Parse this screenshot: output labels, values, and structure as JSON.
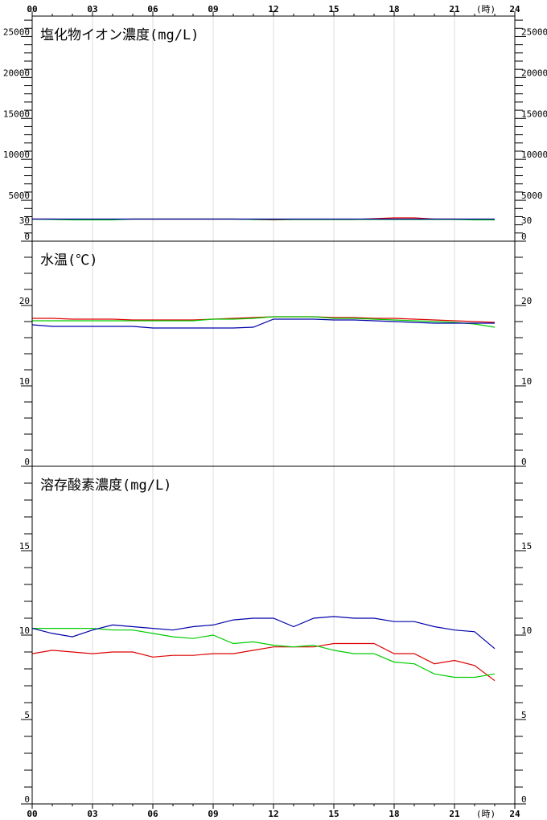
{
  "x_axis": {
    "ticks": [
      "00",
      "03",
      "06",
      "09",
      "12",
      "15",
      "18",
      "21",
      "24"
    ],
    "unit_label": "(時)",
    "range": [
      0,
      24
    ]
  },
  "colors": {
    "red": "#dd0000",
    "green": "#00cc00",
    "blue": "#0000aa"
  },
  "chart_data": [
    {
      "type": "line",
      "title": "塩化物イオン濃度(mg/L)",
      "ylim": [
        0,
        27500
      ],
      "y_ticks": [
        0,
        5000,
        10000,
        15000,
        20000,
        25000
      ],
      "y_tick_labels": [
        "0",
        "5000",
        "10000",
        "15000",
        "20000",
        "25000"
      ],
      "minor_step": 1000,
      "x": [
        0,
        1,
        2,
        3,
        4,
        5,
        6,
        7,
        8,
        9,
        10,
        11,
        12,
        13,
        14,
        15,
        16,
        17,
        18,
        19,
        20,
        21,
        22,
        23
      ],
      "series": [
        {
          "color": "red",
          "values": [
            2700,
            2700,
            2650,
            2650,
            2650,
            2700,
            2700,
            2700,
            2700,
            2700,
            2700,
            2650,
            2600,
            2650,
            2650,
            2650,
            2650,
            2750,
            2850,
            2850,
            2700,
            2700,
            2650,
            2650
          ]
        },
        {
          "color": "green",
          "values": [
            2700,
            2650,
            2600,
            2600,
            2600,
            2700,
            2700,
            2700,
            2700,
            2700,
            2700,
            2650,
            2650,
            2650,
            2650,
            2650,
            2650,
            2650,
            2650,
            2650,
            2650,
            2650,
            2600,
            2600
          ]
        },
        {
          "color": "blue",
          "values": [
            2700,
            2700,
            2700,
            2700,
            2700,
            2700,
            2700,
            2700,
            2700,
            2700,
            2700,
            2700,
            2700,
            2700,
            2700,
            2700,
            2700,
            2700,
            2700,
            2700,
            2700,
            2700,
            2700,
            2700
          ]
        }
      ]
    },
    {
      "type": "line",
      "title": "水温(℃)",
      "ylim": [
        0,
        28
      ],
      "y_ticks": [
        0,
        10,
        20,
        30
      ],
      "y_tick_labels": [
        "0",
        "10",
        "20",
        "30"
      ],
      "minor_step": 2,
      "x": [
        0,
        1,
        2,
        3,
        4,
        5,
        6,
        7,
        8,
        9,
        10,
        11,
        12,
        13,
        14,
        15,
        16,
        17,
        18,
        19,
        20,
        21,
        22,
        23
      ],
      "series": [
        {
          "color": "red",
          "values": [
            18.4,
            18.4,
            18.3,
            18.3,
            18.3,
            18.2,
            18.2,
            18.2,
            18.2,
            18.3,
            18.4,
            18.5,
            18.6,
            18.6,
            18.6,
            18.5,
            18.5,
            18.4,
            18.4,
            18.3,
            18.2,
            18.1,
            18.0,
            17.9
          ]
        },
        {
          "color": "green",
          "values": [
            18.1,
            18.1,
            18.1,
            18.1,
            18.1,
            18.1,
            18.1,
            18.1,
            18.1,
            18.3,
            18.3,
            18.4,
            18.6,
            18.6,
            18.6,
            18.4,
            18.4,
            18.3,
            18.2,
            18.1,
            18.0,
            17.9,
            17.7,
            17.3
          ]
        },
        {
          "color": "blue",
          "values": [
            17.6,
            17.4,
            17.4,
            17.4,
            17.4,
            17.4,
            17.2,
            17.2,
            17.2,
            17.2,
            17.2,
            17.3,
            18.3,
            18.3,
            18.3,
            18.2,
            18.2,
            18.1,
            18.0,
            17.9,
            17.8,
            17.8,
            17.8,
            17.8
          ]
        }
      ]
    },
    {
      "type": "line",
      "title": "溶存酸素濃度(mg/L)",
      "ylim": [
        0,
        20
      ],
      "y_ticks": [
        0,
        5,
        10,
        15
      ],
      "y_tick_labels": [
        "0",
        "5",
        "10",
        "15"
      ],
      "minor_step": 1,
      "x": [
        0,
        1,
        2,
        3,
        4,
        5,
        6,
        7,
        8,
        9,
        10,
        11,
        12,
        13,
        14,
        15,
        16,
        17,
        18,
        19,
        20,
        21,
        22,
        23
      ],
      "series": [
        {
          "color": "red",
          "values": [
            8.9,
            9.1,
            9.0,
            8.9,
            9.0,
            9.0,
            8.7,
            8.8,
            8.8,
            8.9,
            8.9,
            9.1,
            9.3,
            9.3,
            9.3,
            9.5,
            9.5,
            9.5,
            8.9,
            8.9,
            8.3,
            8.5,
            8.2,
            7.3
          ]
        },
        {
          "color": "green",
          "values": [
            10.4,
            10.4,
            10.4,
            10.4,
            10.3,
            10.3,
            10.1,
            9.9,
            9.8,
            10.0,
            9.5,
            9.6,
            9.4,
            9.3,
            9.4,
            9.1,
            8.9,
            8.9,
            8.4,
            8.3,
            7.7,
            7.5,
            7.5,
            7.7
          ]
        },
        {
          "color": "blue",
          "values": [
            10.4,
            10.1,
            9.9,
            10.3,
            10.6,
            10.5,
            10.4,
            10.3,
            10.5,
            10.6,
            10.9,
            11.0,
            11.0,
            10.5,
            11.0,
            11.1,
            11.0,
            11.0,
            10.8,
            10.8,
            10.5,
            10.3,
            10.2,
            9.2
          ]
        }
      ]
    }
  ]
}
